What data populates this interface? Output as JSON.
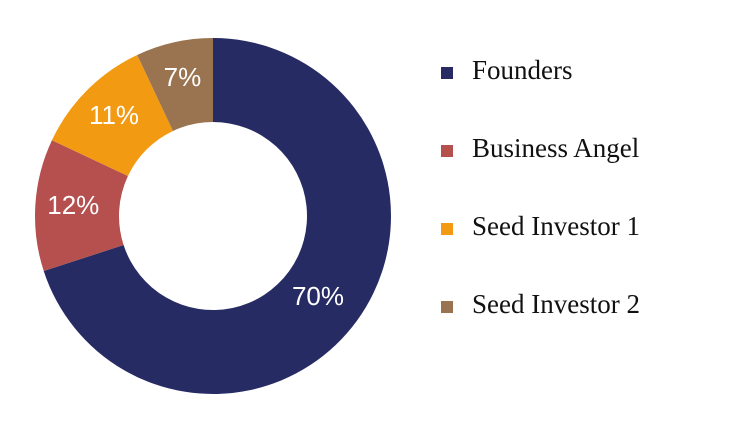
{
  "chart_data": {
    "type": "donut",
    "categories": [
      "Founders",
      "Business Angel",
      "Seed Investor 1",
      "Seed Investor 2"
    ],
    "values": [
      70,
      12,
      11,
      7
    ],
    "value_labels": [
      "70%",
      "12%",
      "11%",
      "7%"
    ],
    "colors": [
      "#262b63",
      "#b5504f",
      "#f39a13",
      "#9a7350"
    ],
    "legend": "right"
  }
}
